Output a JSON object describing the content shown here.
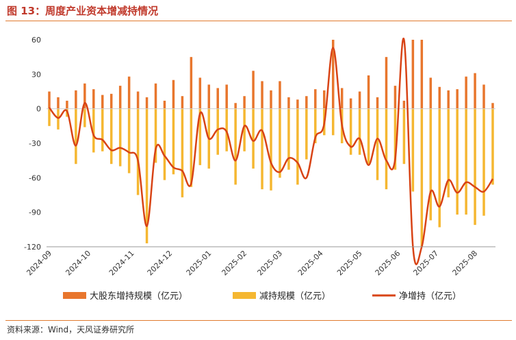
{
  "figure": {
    "title": "图 13：周度产业资本增减持情况",
    "source": "资料来源：Wind，天风证券研究所"
  },
  "colors": {
    "increase": "#e8762d",
    "decrease": "#f5b731",
    "net": "#d84315",
    "title": "#c0392b",
    "rule": "#e07a2f"
  },
  "chart_data": {
    "type": "bar",
    "ylim": [
      -120,
      60
    ],
    "yticks": [
      60,
      30,
      0,
      -30,
      -60,
      -90,
      -120
    ],
    "xticks": [
      "2024-09",
      "2024-10",
      "2024-11",
      "2024-12",
      "2025-01",
      "2025-02",
      "2025-03",
      "2025-04",
      "2025-05",
      "2025-06",
      "2025-07",
      "2025-08"
    ],
    "xtick_positions": [
      0,
      4.4,
      9.3,
      13.6,
      18,
      22,
      26,
      30.6,
      35,
      39.3,
      43.6,
      48
    ],
    "grid": false,
    "legend_position": "bottom",
    "series": [
      {
        "name": "大股东增持规模（亿元）",
        "values": [
          15,
          10,
          7,
          16,
          22,
          17,
          12,
          13,
          20,
          28,
          15,
          10,
          22,
          7,
          25,
          11,
          45,
          27,
          21,
          18,
          21,
          5,
          11,
          33,
          24,
          16,
          24,
          10,
          8,
          11,
          17,
          16,
          60,
          18,
          9,
          15,
          29,
          10,
          45,
          20,
          7,
          60,
          60,
          27,
          19,
          16,
          17,
          28,
          31,
          21,
          5
        ]
      },
      {
        "name": "减持规模（亿元）",
        "values": [
          -15,
          -18,
          -7,
          -48,
          -16,
          -38,
          -37,
          -48,
          -50,
          -56,
          -75,
          -117,
          -47,
          -62,
          -57,
          -77,
          -68,
          -49,
          -52,
          -40,
          -37,
          -66,
          -37,
          -52,
          -70,
          -71,
          -60,
          -53,
          -66,
          -44,
          -30,
          -23,
          -23,
          -30,
          -40,
          -40,
          -49,
          -62,
          -70,
          -53,
          -48,
          -72,
          -125,
          -97,
          -103,
          -77,
          -92,
          -92,
          -101,
          -93,
          -66
        ]
      },
      {
        "name": "净增持（亿元）",
        "values": [
          1,
          -8,
          -2,
          -32,
          5,
          -23,
          -27,
          -36,
          -34,
          -38,
          -45,
          -102,
          -35,
          -41,
          -51,
          -54,
          -65,
          -4,
          -26,
          -18,
          -20,
          -45,
          -15,
          -28,
          -19,
          -47,
          -55,
          -43,
          -47,
          -60,
          -25,
          -13,
          53,
          -14,
          -33,
          -26,
          -49,
          -26,
          -45,
          -44,
          60,
          -120,
          -120,
          -72,
          -85,
          -62,
          -73,
          -64,
          -68,
          -72,
          -61
        ]
      }
    ]
  }
}
